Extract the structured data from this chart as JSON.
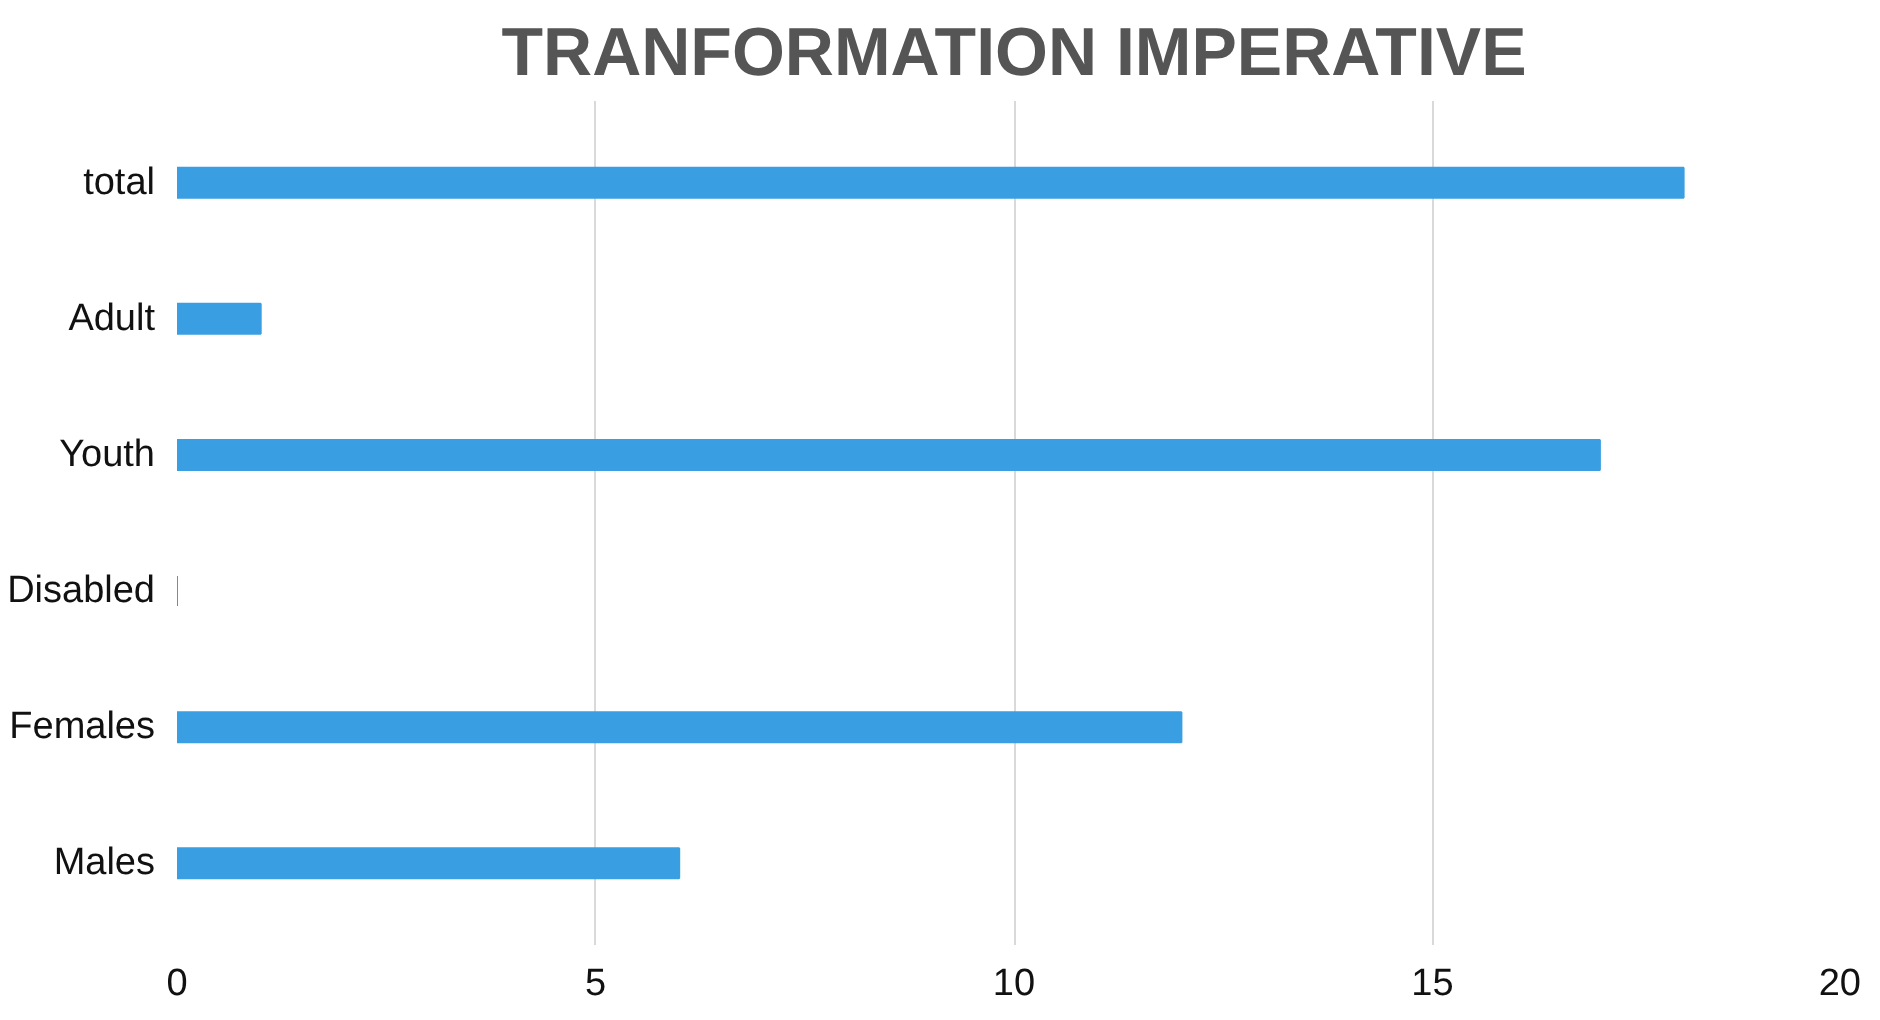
{
  "chart_data": {
    "type": "bar",
    "orientation": "horizontal",
    "title": "TRANFORMATION IMPERATIVE",
    "categories": [
      "total",
      "Adult",
      "Youth",
      "Disabled",
      "Females",
      "Males"
    ],
    "values": [
      18,
      1,
      17,
      0,
      12,
      6
    ],
    "color": "#3a9fe2",
    "xlim": [
      0,
      20
    ],
    "xticks": [
      0,
      5,
      10,
      15,
      20
    ],
    "grid": "x"
  }
}
